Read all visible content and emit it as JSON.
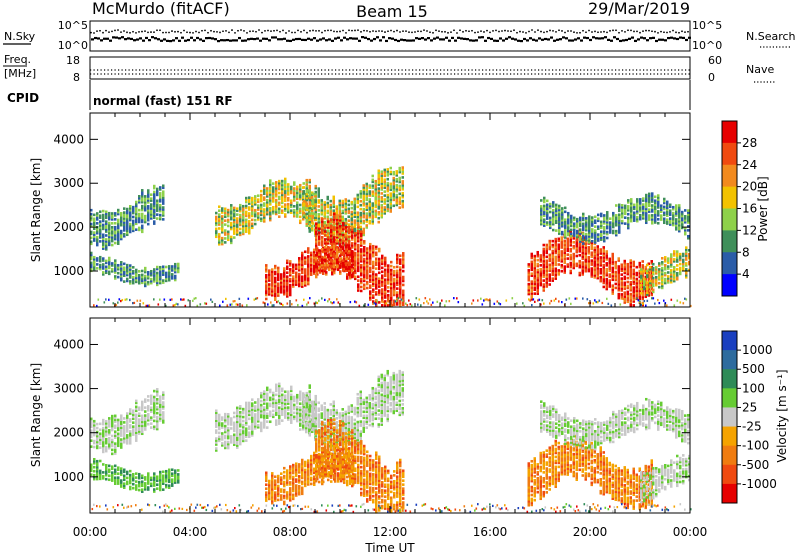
{
  "header": {
    "station": "McMurdo (fitACF)",
    "beam": "Beam 15",
    "date": "29/Mar/2019"
  },
  "noise_panel": {
    "left_label": "N.Sky",
    "right_label": "N.Search",
    "left_ticks": [
      "10^5",
      "10^0"
    ],
    "right_ticks": [
      "10^5",
      "10^0"
    ]
  },
  "freq_panel": {
    "left_label_top": "Freq.",
    "left_label_bottom": "[MHz]",
    "right_label": "Nave",
    "left_ticks": [
      "18",
      "8"
    ],
    "right_ticks": [
      "60",
      "0"
    ]
  },
  "cpid_panel": {
    "label": "CPID",
    "text": "normal (fast) 151 RF"
  },
  "chart_data": [
    {
      "type": "heatmap",
      "name": "power",
      "ylabel": "Slant Range [km]",
      "xlabel": "",
      "ylim": [
        180,
        4600
      ],
      "y_ticks": [
        "1000",
        "2000",
        "3000",
        "4000"
      ],
      "x_ticks": [
        "00:00",
        "04:00",
        "08:00",
        "12:00",
        "16:00",
        "20:00",
        "00:00"
      ],
      "colorbar": {
        "label": "Power [dB]",
        "tick_labels": [
          "4",
          "8",
          "12",
          "16",
          "20",
          "24",
          "28"
        ],
        "colors": [
          "#0000ff",
          "#2a5ca8",
          "#3f8f5a",
          "#8ed14a",
          "#f2c200",
          "#f28a1e",
          "#f04a10",
          "#e60000"
        ]
      },
      "echo_regions": [
        {
          "t0": 0.0,
          "t1": 3.0,
          "r0": 2000,
          "r1": 2800,
          "level": "low"
        },
        {
          "t0": 5.0,
          "t1": 9.0,
          "r0": 2100,
          "r1": 2900,
          "level": "mid"
        },
        {
          "t0": 8.5,
          "t1": 12.5,
          "r0": 2200,
          "r1": 3200,
          "level": "mid"
        },
        {
          "t0": 0.0,
          "t1": 3.5,
          "r0": 900,
          "r1": 1300,
          "level": "low"
        },
        {
          "t0": 7.0,
          "t1": 10.5,
          "r0": 800,
          "r1": 1500,
          "level": "high"
        },
        {
          "t0": 9.0,
          "t1": 12.5,
          "r0": 750,
          "r1": 2000,
          "level": "high"
        },
        {
          "t0": 17.5,
          "t1": 22.5,
          "r0": 800,
          "r1": 1700,
          "level": "high"
        },
        {
          "t0": 22.0,
          "t1": 24.0,
          "r0": 800,
          "r1": 1400,
          "level": "mid"
        },
        {
          "t0": 18.0,
          "t1": 24.0,
          "r0": 2000,
          "r1": 2600,
          "level": "low"
        }
      ]
    },
    {
      "type": "heatmap",
      "name": "velocity",
      "ylabel": "Slant Range [km]",
      "xlabel": "Time UT",
      "ylim": [
        180,
        4600
      ],
      "y_ticks": [
        "1000",
        "2000",
        "3000",
        "4000"
      ],
      "x_ticks": [
        "00:00",
        "04:00",
        "08:00",
        "12:00",
        "16:00",
        "20:00",
        "00:00"
      ],
      "colorbar": {
        "label": "Velocity [m s⁻¹]",
        "tick_labels": [
          "1000",
          "500",
          "100",
          "25",
          "-25",
          "-100",
          "-500",
          "-1000"
        ],
        "colors": [
          "#1a3fbf",
          "#2d6b9e",
          "#2e8b57",
          "#66cc33",
          "#c8c8c8",
          "#f5a300",
          "#f07c10",
          "#f04a10",
          "#e60000"
        ]
      },
      "echo_regions": [
        {
          "t0": 0.0,
          "t1": 3.0,
          "r0": 2000,
          "r1": 2800,
          "level": "grey"
        },
        {
          "t0": 5.0,
          "t1": 9.0,
          "r0": 2100,
          "r1": 2900,
          "level": "grey"
        },
        {
          "t0": 8.5,
          "t1": 12.5,
          "r0": 2200,
          "r1": 3200,
          "level": "grey"
        },
        {
          "t0": 0.0,
          "t1": 3.5,
          "r0": 900,
          "r1": 1300,
          "level": "green"
        },
        {
          "t0": 7.0,
          "t1": 10.5,
          "r0": 800,
          "r1": 1500,
          "level": "orange"
        },
        {
          "t0": 9.0,
          "t1": 12.5,
          "r0": 750,
          "r1": 2000,
          "level": "orange"
        },
        {
          "t0": 17.5,
          "t1": 22.5,
          "r0": 800,
          "r1": 1700,
          "level": "orange"
        },
        {
          "t0": 22.0,
          "t1": 24.0,
          "r0": 800,
          "r1": 1400,
          "level": "grey"
        },
        {
          "t0": 18.0,
          "t1": 24.0,
          "r0": 2000,
          "r1": 2600,
          "level": "grey"
        }
      ]
    }
  ]
}
